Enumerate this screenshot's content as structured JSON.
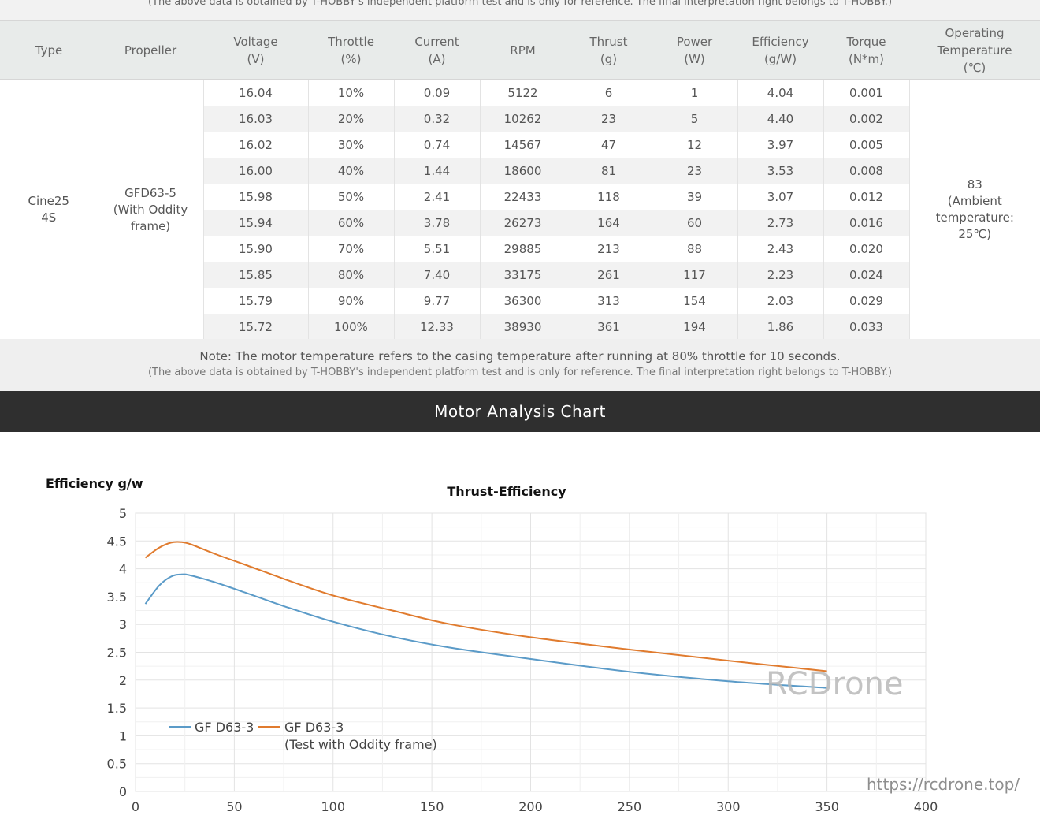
{
  "top_note": "(The above data is obtained by T-HOBBY's independent platform test and is only for reference. The final interpretation right belongs to T-HOBBY.)",
  "table": {
    "headers": [
      {
        "l1": "Type",
        "l2": ""
      },
      {
        "l1": "Propeller",
        "l2": ""
      },
      {
        "l1": "Voltage",
        "l2": "(V)"
      },
      {
        "l1": "Throttle",
        "l2": "(%)"
      },
      {
        "l1": "Current",
        "l2": "(A)"
      },
      {
        "l1": "RPM",
        "l2": ""
      },
      {
        "l1": "Thrust",
        "l2": "(g)"
      },
      {
        "l1": "Power",
        "l2": "(W)"
      },
      {
        "l1": "Efficiency",
        "l2": "(g/W)"
      },
      {
        "l1": "Torque",
        "l2": "(N*m)"
      },
      {
        "l1": "Operating",
        "l2": "Temperature",
        "l3": "(℃)"
      }
    ],
    "type": {
      "l1": "Cine25",
      "l2": "4S"
    },
    "propeller": {
      "l1": "GFD63-5",
      "l2": "(With Oddity",
      "l3": "frame)"
    },
    "temperature": {
      "l1": "83",
      "l2": "(Ambient",
      "l3": "temperature:",
      "l4": "25℃)"
    },
    "rows": [
      {
        "voltage": "16.04",
        "throttle": "10%",
        "current": "0.09",
        "rpm": "5122",
        "thrust": "6",
        "power": "1",
        "efficiency": "4.04",
        "torque": "0.001"
      },
      {
        "voltage": "16.03",
        "throttle": "20%",
        "current": "0.32",
        "rpm": "10262",
        "thrust": "23",
        "power": "5",
        "efficiency": "4.40",
        "torque": "0.002"
      },
      {
        "voltage": "16.02",
        "throttle": "30%",
        "current": "0.74",
        "rpm": "14567",
        "thrust": "47",
        "power": "12",
        "efficiency": "3.97",
        "torque": "0.005"
      },
      {
        "voltage": "16.00",
        "throttle": "40%",
        "current": "1.44",
        "rpm": "18600",
        "thrust": "81",
        "power": "23",
        "efficiency": "3.53",
        "torque": "0.008"
      },
      {
        "voltage": "15.98",
        "throttle": "50%",
        "current": "2.41",
        "rpm": "22433",
        "thrust": "118",
        "power": "39",
        "efficiency": "3.07",
        "torque": "0.012"
      },
      {
        "voltage": "15.94",
        "throttle": "60%",
        "current": "3.78",
        "rpm": "26273",
        "thrust": "164",
        "power": "60",
        "efficiency": "2.73",
        "torque": "0.016"
      },
      {
        "voltage": "15.90",
        "throttle": "70%",
        "current": "5.51",
        "rpm": "29885",
        "thrust": "213",
        "power": "88",
        "efficiency": "2.43",
        "torque": "0.020"
      },
      {
        "voltage": "15.85",
        "throttle": "80%",
        "current": "7.40",
        "rpm": "33175",
        "thrust": "261",
        "power": "117",
        "efficiency": "2.23",
        "torque": "0.024"
      },
      {
        "voltage": "15.79",
        "throttle": "90%",
        "current": "9.77",
        "rpm": "36300",
        "thrust": "313",
        "power": "154",
        "efficiency": "2.03",
        "torque": "0.029"
      },
      {
        "voltage": "15.72",
        "throttle": "100%",
        "current": "12.33",
        "rpm": "38930",
        "thrust": "361",
        "power": "194",
        "efficiency": "1.86",
        "torque": "0.033"
      }
    ]
  },
  "note": {
    "main": "Note: The motor temperature refers to the casing temperature after running at 80% throttle for 10 seconds.",
    "sub": "(The above data is obtained by T-HOBBY's independent platform test and is only for reference. The final interpretation right belongs to T-HOBBY.)"
  },
  "section_title": "Motor Analysis Chart",
  "watermark": {
    "brand": "RCDrone",
    "url": "https://rcdrone.top/"
  },
  "chart_data": {
    "type": "line",
    "title": "Thrust-Efficiency",
    "ylabel": "Efficiency g/w",
    "xlabel": "",
    "xlim": [
      0,
      400
    ],
    "ylim": [
      0,
      5
    ],
    "xticks": [
      0,
      50,
      100,
      150,
      200,
      250,
      300,
      350,
      400
    ],
    "yticks": [
      0,
      0.5,
      1,
      1.5,
      2,
      2.5,
      3,
      3.5,
      4,
      4.5,
      5
    ],
    "ytick_labels": [
      "0",
      "0.5",
      "1",
      "1.5",
      "2",
      "2.5",
      "3",
      "3.5",
      "4",
      "4.5",
      "5"
    ],
    "grid": true,
    "legend_position": "bottom-left",
    "colors": {
      "series1": "#5b9bc8",
      "series2": "#e07b2e"
    },
    "series": [
      {
        "name": "GF D63-3",
        "legend_line2": "",
        "x": [
          5,
          12,
          18,
          23,
          28,
          40,
          55,
          75,
          100,
          130,
          160,
          200,
          250,
          300,
          350
        ],
        "y": [
          3.37,
          3.7,
          3.86,
          3.9,
          3.88,
          3.76,
          3.58,
          3.33,
          3.05,
          2.78,
          2.58,
          2.38,
          2.15,
          1.98,
          1.86
        ]
      },
      {
        "name": "GF D63-3",
        "legend_line2": "(Test with Oddity frame)",
        "x": [
          5,
          12,
          18,
          23,
          28,
          40,
          55,
          75,
          100,
          130,
          160,
          200,
          250,
          300,
          350
        ],
        "y": [
          4.2,
          4.38,
          4.47,
          4.48,
          4.44,
          4.27,
          4.08,
          3.82,
          3.52,
          3.25,
          3.0,
          2.77,
          2.55,
          2.35,
          2.16
        ]
      }
    ]
  }
}
